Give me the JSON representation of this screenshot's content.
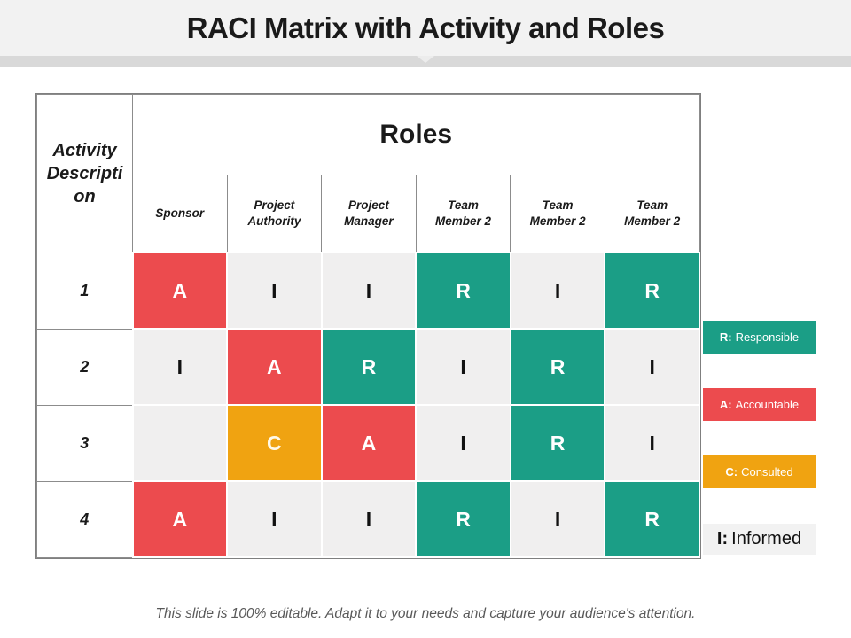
{
  "title": "RACI Matrix with Activity and Roles",
  "table": {
    "corner_header": "Activity Description",
    "group_header": "Roles",
    "columns": [
      "Sponsor",
      "Project Authority",
      "Project Manager",
      "Team Member 2",
      "Team Member 2",
      "Team Member 2"
    ],
    "rows": [
      {
        "label": "1",
        "cells": [
          "A",
          "I",
          "I",
          "R",
          "I",
          "R"
        ]
      },
      {
        "label": "2",
        "cells": [
          "I",
          "A",
          "R",
          "I",
          "R",
          "I"
        ]
      },
      {
        "label": "3",
        "cells": [
          "",
          "C",
          "A",
          "I",
          "R",
          "I"
        ]
      },
      {
        "label": "4",
        "cells": [
          "A",
          "I",
          "I",
          "R",
          "I",
          "R"
        ]
      }
    ]
  },
  "legend": [
    {
      "key": "R:",
      "label": "Responsible"
    },
    {
      "key": "A:",
      "label": "Accountable"
    },
    {
      "key": "C:",
      "label": "Consulted"
    },
    {
      "key": "I:",
      "label": "Informed"
    }
  ],
  "colors": {
    "responsible": "#1B9E86",
    "accountable": "#EC4B4E",
    "consulted": "#F0A311",
    "informed_cell": "#F0EFEF",
    "informed_legend_bg": "#F2F2F2",
    "divider_bar": "#D9D9D9",
    "title_band_bg": "#F2F2F2"
  },
  "footer": "This slide is 100% editable. Adapt it to your needs and capture your audience's attention."
}
